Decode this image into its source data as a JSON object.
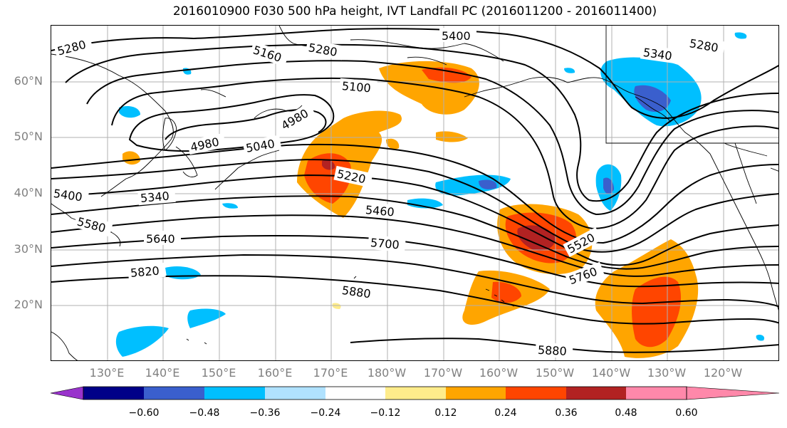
{
  "title": "2016010900 F030 500 hPa height, IVT Landfall PC (2016011200 - 2016011400)",
  "lat_labels": [
    "60°N",
    "50°N",
    "40°N",
    "30°N",
    "20°N"
  ],
  "lon_labels": [
    "130°E",
    "140°E",
    "150°E",
    "160°E",
    "170°E",
    "180°W",
    "170°W",
    "160°W",
    "150°W",
    "140°W",
    "130°W",
    "120°W"
  ],
  "colorbar": {
    "ticks": [
      "−0.60",
      "−0.48",
      "−0.36",
      "−0.24",
      "−0.12",
      "0.12",
      "0.24",
      "0.36",
      "0.48",
      "0.60"
    ],
    "colors": [
      "#9933cc",
      "#000088",
      "#3a5fcd",
      "#00bfff",
      "#b0e2ff",
      "#ffffff",
      "#ffec8b",
      "#ffa500",
      "#ff4500",
      "#b22222",
      "#ff88aa"
    ]
  },
  "contour_labels": [
    "5280",
    "5400",
    "5160",
    "5280",
    "5340",
    "5280",
    "5100",
    "4980",
    "4980",
    "5040",
    "5220",
    "5400",
    "5340",
    "5580",
    "5460",
    "5640",
    "5700",
    "5520",
    "5820",
    "5760",
    "5880",
    "5880"
  ]
}
